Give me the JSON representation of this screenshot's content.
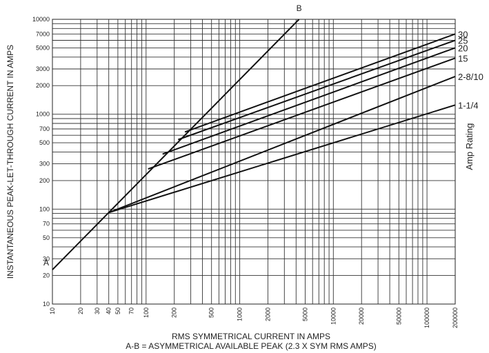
{
  "chart_data": {
    "type": "line",
    "x_scale": "log",
    "y_scale": "log",
    "xlim": [
      10,
      200000
    ],
    "ylim": [
      10,
      10000
    ],
    "xlabel": "RMS SYMMETRICAL CURRENT IN AMPS",
    "xlabel2": "A-B = ASYMMETRICAL AVAILABLE PEAK (2.3 X SYM RMS AMPS)",
    "ylabel": "INSTANTANEOUS PEAK-LET-THROUGH CURRENT IN AMPS",
    "right_label": "Amp Rating",
    "x_ticks": [
      "10",
      "20",
      "30",
      "40",
      "50",
      "70",
      "100",
      "200",
      "500",
      "1000",
      "2000",
      "5000",
      "10000",
      "20000",
      "50000",
      "100000",
      "200000"
    ],
    "y_ticks": [
      "10",
      "20",
      "30",
      "50",
      "70",
      "100",
      "200",
      "300",
      "500",
      "700",
      "1000",
      "2000",
      "3000",
      "5000",
      "7000",
      "10000"
    ],
    "grid": true,
    "reference_line": {
      "start_label": "A",
      "end_label": "B",
      "points": [
        [
          10,
          23
        ],
        [
          4300,
          10000
        ]
      ]
    },
    "series": [
      {
        "name": "1-1/4",
        "points": [
          [
            40,
            92
          ],
          [
            200000,
            1250
          ]
        ]
      },
      {
        "name": "2-8/10",
        "points": [
          [
            40,
            92
          ],
          [
            200000,
            2500
          ]
        ]
      },
      {
        "name": "15",
        "points": [
          [
            105,
            265
          ],
          [
            200000,
            3900
          ]
        ]
      },
      {
        "name": "20",
        "points": [
          [
            150,
            380
          ],
          [
            200000,
            5000
          ]
        ]
      },
      {
        "name": "25",
        "points": [
          [
            220,
            540
          ],
          [
            200000,
            6000
          ]
        ]
      },
      {
        "name": "30",
        "points": [
          [
            260,
            650
          ],
          [
            200000,
            7000
          ]
        ]
      }
    ]
  }
}
